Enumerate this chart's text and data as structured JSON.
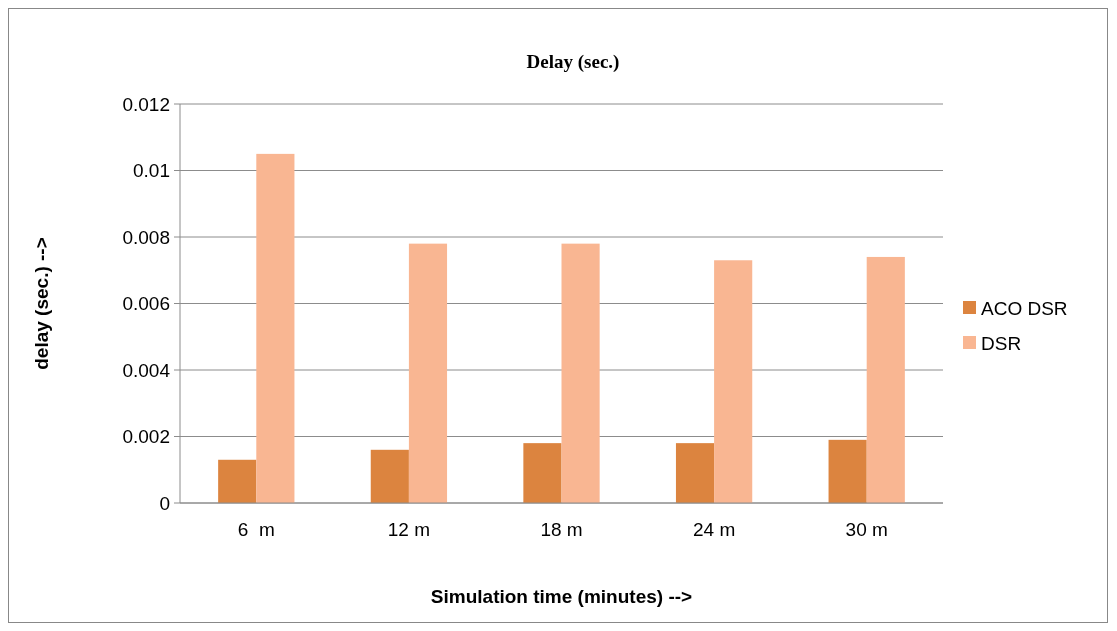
{
  "chart_data": {
    "type": "bar",
    "title": "Delay (sec.)",
    "xlabel": "Simulation time (minutes) -->",
    "ylabel": "delay (sec.) -->",
    "categories": [
      "6  m",
      "12 m",
      "18 m",
      "24 m",
      "30 m"
    ],
    "series": [
      {
        "name": "ACO DSR",
        "color": "#dc843f",
        "values": [
          0.0013,
          0.0016,
          0.0018,
          0.0018,
          0.0019
        ]
      },
      {
        "name": "DSR",
        "color": "#f9b692",
        "values": [
          0.0105,
          0.0078,
          0.0078,
          0.0073,
          0.0074
        ]
      }
    ],
    "ylim": [
      0,
      0.012
    ],
    "yticks": [
      0,
      0.002,
      0.004,
      0.006,
      0.008,
      0.01,
      0.012
    ],
    "grid": "y",
    "legend": "right"
  }
}
